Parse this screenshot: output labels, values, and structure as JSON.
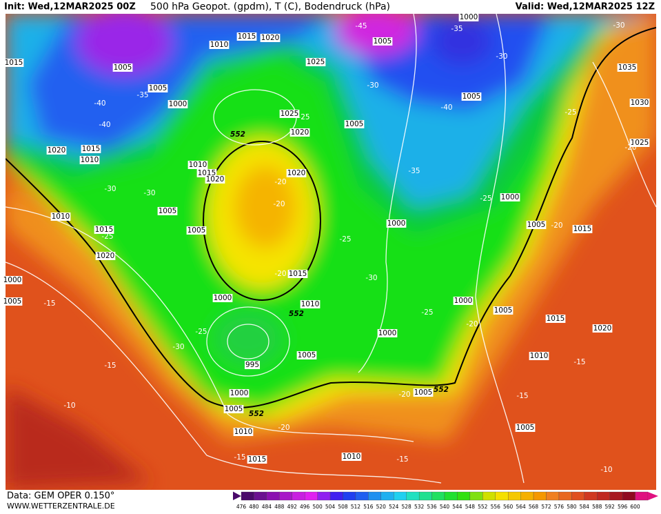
{
  "header": {
    "init": "Init: Wed,12MAR2025 00Z",
    "title": "500 hPa Geopot. (gpdm), T (C), Bodendruck (hPa)",
    "valid": "Valid: Wed,12MAR2025 12Z"
  },
  "footer": {
    "data": "Data: GEM OPER 0.150°",
    "site": "WWW.WETTERZENTRALE.DE"
  },
  "colorbar": [
    476,
    480,
    484,
    488,
    492,
    496,
    500,
    504,
    508,
    512,
    516,
    520,
    524,
    528,
    532,
    536,
    540,
    544,
    548,
    552,
    556,
    560,
    564,
    568,
    572,
    576,
    580,
    584,
    588,
    592,
    596,
    600
  ],
  "pressure_labels": [
    1000,
    1005,
    1015,
    1020,
    1010,
    1025,
    1005,
    1005,
    1000,
    1005,
    1025,
    1020,
    1005,
    1020,
    1015,
    1010,
    1010,
    1015,
    1020,
    1020,
    1005,
    1010,
    1005,
    1015,
    1020,
    1000,
    1000,
    1005,
    1015,
    1035,
    1030,
    1025,
    1015,
    1010,
    1000,
    1000,
    1005,
    1015,
    1020,
    1000,
    1005,
    995,
    1010,
    1000,
    1005,
    1005,
    1010,
    1005,
    1015,
    1010,
    1000,
    1005,
    1015
  ],
  "temperature_labels": [
    -45,
    -35,
    -30,
    -30,
    -30,
    -40,
    -35,
    -40,
    -40,
    -25,
    -25,
    -20,
    -35,
    -20,
    -20,
    -30,
    -30,
    -25,
    -20,
    -25,
    -25,
    -30,
    -20,
    -15,
    -25,
    -20,
    -25,
    -30,
    -15,
    -15,
    -20,
    -15,
    -10,
    -20,
    -15,
    -15,
    -10
  ],
  "contour_labels": [
    552,
    552,
    552,
    552
  ]
}
